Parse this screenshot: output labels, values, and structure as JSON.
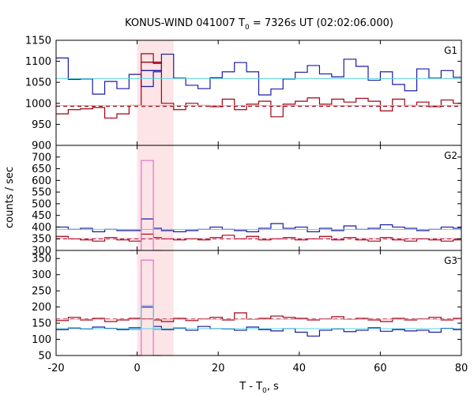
{
  "chart_data": {
    "type": "line",
    "title": {
      "prefix": "KONUS-WIND 041007 T",
      "sub": "0",
      "suffix": " = 7326s UT (02:02:06.000)"
    },
    "xlabel": {
      "prefix": "T - T",
      "sub": "0",
      "suffix": ", s"
    },
    "ylabel": "counts / sec",
    "xlim": [
      -20,
      80
    ],
    "xticks": [
      -20,
      0,
      20,
      40,
      60,
      80
    ],
    "shaded_interval": {
      "x": [
        0,
        9
      ],
      "color": "#fde4e6"
    },
    "colors": {
      "blue": "#1a1aa6",
      "red": "#a00010",
      "cyan": "#5ad2e0",
      "pink": "#f0a6c0",
      "magenta": "#e070c8"
    },
    "panels": [
      {
        "label": "G1",
        "ylim": [
          900,
          1150
        ],
        "yticks": [
          900,
          950,
          1000,
          1050,
          1100,
          1150
        ],
        "series": [
          {
            "color": "blue",
            "style": "step",
            "edges": [
              -20,
              -17,
              -14,
              -11,
              -8,
              -5,
              -2,
              1,
              4,
              6,
              9,
              12,
              15,
              18,
              21,
              24,
              27,
              30,
              33,
              36,
              39,
              42,
              45,
              48,
              51,
              54,
              57,
              60,
              63,
              66,
              69,
              72,
              75,
              78,
              80
            ],
            "values": [
              1108,
              1057,
              1058,
              1022,
              1052,
              1035,
              1069,
              1040,
              1075,
              1117,
              1060,
              1043,
              1035,
              1061,
              1075,
              1097,
              1075,
              1020,
              1034,
              1058,
              1074,
              1090,
              1070,
              1063,
              1105,
              1088,
              1055,
              1075,
              1045,
              1030,
              1082,
              1060,
              1078,
              1062
            ]
          },
          {
            "color": "red",
            "style": "step",
            "edges": [
              -20,
              -17,
              -14,
              -11,
              -8,
              -5,
              -2,
              1,
              4,
              6,
              9,
              12,
              15,
              18,
              21,
              24,
              27,
              30,
              33,
              36,
              39,
              42,
              45,
              48,
              51,
              54,
              57,
              60,
              63,
              66,
              69,
              72,
              75,
              78,
              80
            ],
            "values": [
              975,
              985,
              987,
              990,
              965,
              975,
              995,
              1118,
              1095,
              1000,
              985,
              1000,
              995,
              992,
              1010,
              985,
              998,
              1005,
              968,
              998,
              1005,
              1013,
              998,
              1010,
              1003,
              1012,
              1005,
              982,
              1010,
              995,
              1003,
              992,
              1008,
              1000
            ]
          },
          {
            "color": "cyan",
            "style": "hline",
            "y": 1059
          },
          {
            "color": "red",
            "style": "dashed",
            "y": 993
          },
          {
            "color": "pink",
            "style": "hline",
            "y": 995
          },
          {
            "color": "blue",
            "style": "segment",
            "x": [
              1,
              6
            ],
            "y": 1078
          },
          {
            "color": "red",
            "style": "segment",
            "x": [
              1,
              6
            ],
            "y": 1098
          }
        ]
      },
      {
        "label": "G2",
        "ylim": [
          300,
          750
        ],
        "yticks": [
          300,
          350,
          400,
          450,
          500,
          550,
          600,
          650,
          700,
          750
        ],
        "series": [
          {
            "color": "blue",
            "style": "step",
            "edges": [
              -20,
              -17,
              -14,
              -11,
              -8,
              -5,
              -2,
              1,
              4,
              6,
              9,
              12,
              15,
              18,
              21,
              24,
              27,
              30,
              33,
              36,
              39,
              42,
              45,
              48,
              51,
              54,
              57,
              60,
              63,
              66,
              69,
              72,
              75,
              78,
              80
            ],
            "values": [
              400,
              390,
              395,
              380,
              390,
              385,
              385,
              435,
              395,
              385,
              380,
              385,
              390,
              400,
              390,
              385,
              380,
              395,
              415,
              395,
              400,
              380,
              395,
              385,
              405,
              390,
              395,
              410,
              400,
              395,
              385,
              390,
              400,
              395
            ]
          },
          {
            "color": "red",
            "style": "step",
            "edges": [
              -20,
              -17,
              -14,
              -11,
              -8,
              -5,
              -2,
              1,
              4,
              6,
              9,
              12,
              15,
              18,
              21,
              24,
              27,
              30,
              33,
              36,
              39,
              42,
              45,
              48,
              51,
              54,
              57,
              60,
              63,
              66,
              69,
              72,
              75,
              78,
              80
            ],
            "values": [
              360,
              350,
              345,
              340,
              355,
              345,
              340,
              370,
              355,
              350,
              345,
              350,
              345,
              355,
              365,
              350,
              360,
              345,
              350,
              355,
              345,
              350,
              360,
              345,
              355,
              345,
              340,
              355,
              345,
              340,
              350,
              345,
              340,
              345
            ]
          },
          {
            "color": "magenta",
            "style": "step",
            "edges": [
              -2,
              1,
              4,
              6
            ],
            "values": [
              300,
              685,
              300
            ]
          },
          {
            "color": "cyan",
            "style": "hline",
            "y": 390
          },
          {
            "color": "red",
            "style": "dashed",
            "y": 350
          },
          {
            "color": "pink",
            "style": "hline",
            "y": 352
          }
        ]
      },
      {
        "label": "G3",
        "ylim": [
          50,
          375
        ],
        "yticks": [
          50,
          100,
          150,
          200,
          250,
          300,
          350
        ],
        "series": [
          {
            "color": "blue",
            "style": "step",
            "edges": [
              -20,
              -17,
              -14,
              -11,
              -8,
              -5,
              -2,
              1,
              4,
              6,
              9,
              12,
              15,
              18,
              21,
              24,
              27,
              30,
              33,
              36,
              39,
              42,
              45,
              48,
              51,
              54,
              57,
              60,
              63,
              66,
              69,
              72,
              75,
              78,
              80
            ],
            "values": [
              130,
              135,
              132,
              138,
              134,
              130,
              136,
              200,
              140,
              130,
              135,
              128,
              140,
              133,
              132,
              128,
              138,
              130,
              126,
              133,
              122,
              110,
              128,
              132,
              124,
              128,
              136,
              125,
              130,
              126,
              128,
              122,
              134,
              130
            ]
          },
          {
            "color": "red",
            "style": "step",
            "edges": [
              -20,
              -17,
              -14,
              -11,
              -8,
              -5,
              -2,
              1,
              4,
              6,
              9,
              12,
              15,
              18,
              21,
              24,
              27,
              30,
              33,
              36,
              39,
              42,
              45,
              48,
              51,
              54,
              57,
              60,
              63,
              66,
              69,
              72,
              75,
              78,
              80
            ],
            "values": [
              158,
              168,
              160,
              165,
              155,
              160,
              165,
              163,
              160,
              155,
              165,
              158,
              163,
              168,
              160,
              182,
              162,
              165,
              172,
              168,
              165,
              160,
              163,
              170,
              162,
              165,
              160,
              155,
              165,
              160,
              163,
              168,
              160,
              165
            ]
          },
          {
            "color": "magenta",
            "style": "step",
            "edges": [
              -2,
              1,
              4,
              6
            ],
            "values": [
              50,
              345,
              50
            ]
          },
          {
            "color": "cyan",
            "style": "step",
            "edges": [
              -2,
              1,
              4,
              6
            ],
            "values": [
              130,
              205,
              130
            ]
          },
          {
            "color": "cyan",
            "style": "hline",
            "y": 133
          },
          {
            "color": "red",
            "style": "dashed",
            "y": 163
          },
          {
            "color": "pink",
            "style": "hline",
            "y": 162
          }
        ]
      }
    ]
  }
}
